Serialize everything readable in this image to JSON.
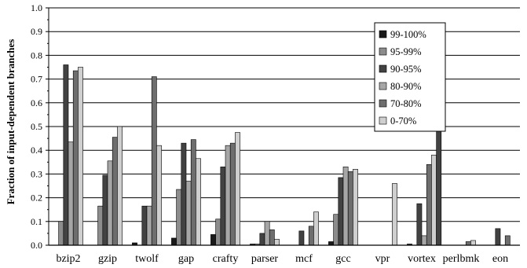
{
  "chart_data": {
    "type": "bar",
    "ylabel": "Fraction of input-dependent branches",
    "xlabel": "",
    "ylim": [
      0,
      1.0
    ],
    "yticks": [
      "0.0",
      "0.1",
      "0.2",
      "0.3",
      "0.4",
      "0.5",
      "0.6",
      "0.7",
      "0.8",
      "0.9",
      "1.0"
    ],
    "grid": true,
    "legend_position": "top-right",
    "categories": [
      "bzip2",
      "gzip",
      "twolf",
      "gap",
      "crafty",
      "parser",
      "mcf",
      "gcc",
      "vpr",
      "vortex",
      "perlbmk",
      "eon"
    ],
    "series": [
      {
        "name": "99-100%",
        "color": "#1a1a1a",
        "values": [
          0,
          0,
          0.01,
          0.03,
          0.045,
          0.005,
          0,
          0.015,
          0,
          0.005,
          0,
          0
        ]
      },
      {
        "name": "95-99%",
        "color": "#8c8c8c",
        "values": [
          0.1,
          0.165,
          0,
          0.235,
          0.11,
          0.005,
          0,
          0.13,
          0,
          0,
          0,
          0
        ]
      },
      {
        "name": "90-95%",
        "color": "#424242",
        "values": [
          0.76,
          0.295,
          0.165,
          0.43,
          0.33,
          0.05,
          0.06,
          0.285,
          0,
          0.175,
          0,
          0.07
        ]
      },
      {
        "name": "80-90%",
        "color": "#a6a6a6",
        "values": [
          0.435,
          0.355,
          0.165,
          0.27,
          0.42,
          0.1,
          0,
          0.33,
          0,
          0.04,
          0,
          0
        ]
      },
      {
        "name": "70-80%",
        "color": "#6e6e6e",
        "values": [
          0.735,
          0.455,
          0.71,
          0.445,
          0.43,
          0.065,
          0.08,
          0.31,
          0,
          0.34,
          0.015,
          0.04
        ]
      },
      {
        "name": "0-70%",
        "color": "#cfcfcf",
        "values": [
          0.75,
          0.5,
          0.42,
          0.365,
          0.475,
          0.025,
          0.14,
          0.32,
          0.26,
          0.38,
          0.02,
          0
        ]
      }
    ],
    "extra_bar": {
      "category": "vortex",
      "value": 0.5,
      "color": "#424242"
    }
  }
}
